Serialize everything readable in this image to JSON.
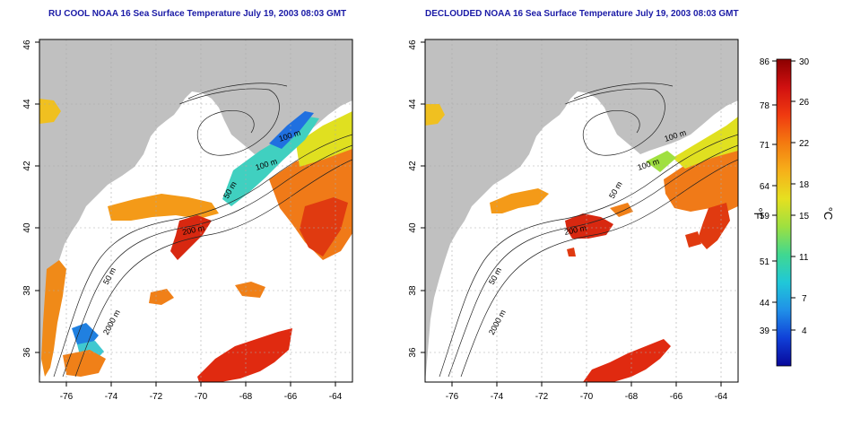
{
  "panels": [
    {
      "id": "left",
      "title": "RU COOL NOAA 16 Sea Surface Temperature July 19, 2003 08:03 GMT",
      "x_ticks": [
        "-76",
        "-74",
        "-72",
        "-70",
        "-68",
        "-66",
        "-64"
      ],
      "y_ticks": [
        "36",
        "38",
        "40",
        "42",
        "44",
        "46"
      ],
      "contour_labels": [
        "100 m",
        "100 m",
        "50 m",
        "200 m",
        "50 m",
        "2000 m"
      ]
    },
    {
      "id": "right",
      "title": "DECLOUDED NOAA 16 Sea Surface Temperature July 19, 2003 08:03 GMT",
      "x_ticks": [
        "-76",
        "-74",
        "-72",
        "-70",
        "-68",
        "-66",
        "-64"
      ],
      "y_ticks": [
        "36",
        "38",
        "40",
        "42",
        "44",
        "46"
      ],
      "contour_labels": [
        "100 m",
        "100 m",
        "50 m",
        "200 m",
        "50 m",
        "2000 m"
      ]
    }
  ],
  "colorbar": {
    "fahrenheit_ticks": [
      "86",
      "78",
      "71",
      "64",
      "59",
      "51",
      "44",
      "39"
    ],
    "celsius_ticks": [
      "30",
      "26",
      "22",
      "18",
      "15",
      "11",
      "7",
      "4"
    ],
    "fahrenheit_unit": "°F",
    "celsius_unit": "°C",
    "colors": [
      "#8b0000",
      "#d01010",
      "#f03a10",
      "#f47a10",
      "#f6b01a",
      "#e6e020",
      "#9ee040",
      "#40d890",
      "#20c8d8",
      "#2090e8",
      "#1040d8",
      "#08089a"
    ]
  },
  "colors": {
    "land": "#c0c0c0",
    "ocean": "#ffffff",
    "grid": "#aaaaaa",
    "title": "#1a1aa6"
  }
}
